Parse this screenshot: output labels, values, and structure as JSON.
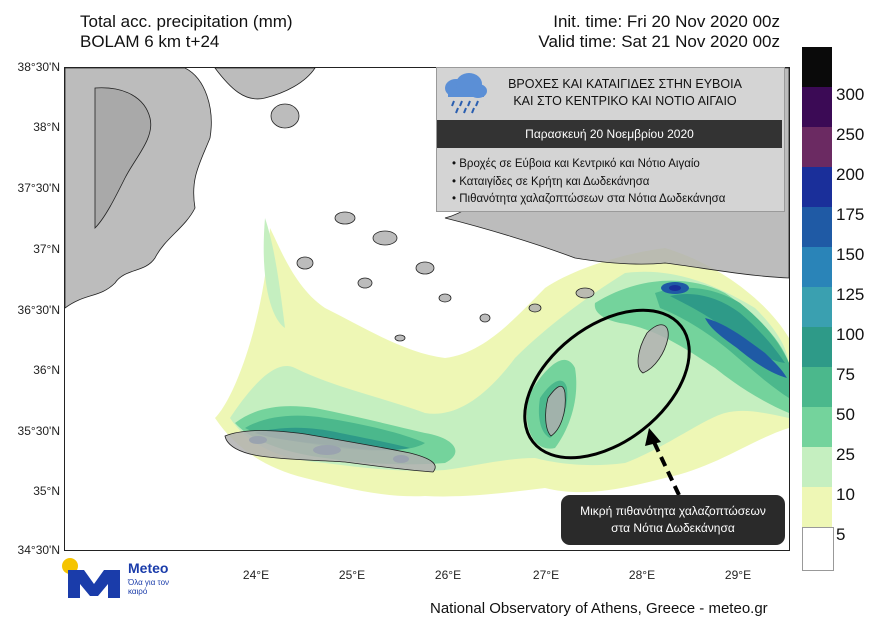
{
  "header": {
    "title_line1": "Total acc. precipitation (mm)",
    "title_line2": "BOLAM 6 km t+24",
    "init_time": "Init. time: Fri 20 Nov 2020 00z",
    "valid_time": "Valid time: Sat 21 Nov 2020 00z"
  },
  "axes": {
    "lat_labels": [
      "38°30'N",
      "38°N",
      "37°30'N",
      "37°N",
      "36°30'N",
      "36°N",
      "35°30'N",
      "35°N",
      "34°30'N"
    ],
    "lon_labels": [
      "24°E",
      "25°E",
      "26°E",
      "27°E",
      "28°E",
      "29°E"
    ]
  },
  "colorbar": {
    "labels": [
      "300",
      "250",
      "200",
      "175",
      "150",
      "125",
      "100",
      "75",
      "50",
      "25",
      "10",
      "5"
    ],
    "colors": [
      "#0a0a0a",
      "#3b0a55",
      "#6b2a62",
      "#1a2f9a",
      "#1f5aa5",
      "#2a84b8",
      "#3aa0b0",
      "#2e9a88",
      "#4bb88c",
      "#74d39c",
      "#c5efc0",
      "#eef7b5",
      "#ffffff"
    ]
  },
  "info_box": {
    "title": "ΒΡΟΧΕΣ ΚΑΙ ΚΑΤΑΙΓΙΔΕΣ ΣΤΗΝ ΕΥΒΟΙΑ ΚΑΙ ΣΤΟ ΚΕΝΤΡΙΚΟ ΚΑΙ ΝΟΤΙΟ ΑΙΓΑΙΟ",
    "title_line1": "ΒΡΟΧΕΣ ΚΑΙ ΚΑΤΑΙΓΙΔΕΣ ΣΤΗΝ ΕΥΒΟΙΑ",
    "title_line2": "ΚΑΙ ΣΤΟ ΚΕΝΤΡΙΚΟ ΚΑΙ ΝΟΤΙΟ ΑΙΓΑΙΟ",
    "date": "Παρασκευή 20 Νοεμβρίου 2020",
    "bullets": [
      "Βροχές σε Εύβοια και Κεντρικό και Νότιο Αιγαίο",
      "Καταιγίδες σε Κρήτη και Δωδεκάνησα",
      "Πιθανότητα χαλαζοπτώσεων στα Νότια Δωδεκάνησα"
    ],
    "icon": "rain-cloud-icon"
  },
  "callout": {
    "line1": "Μικρή πιθανότητα χαλαζοπτώσεων",
    "line2": "στα Νότια Δωδεκάνησα"
  },
  "logo": {
    "word": "Meteo",
    "tagline": "Όλα για τον καιρό"
  },
  "footer": "National Observatory of Athens, Greece - meteo.gr",
  "colors": {
    "land": "#b0b0b0",
    "sea": "#ffffff",
    "ellipse": "#000000",
    "info_box_bg": "#d4d4d4",
    "callout_bg": "#2a2a2a"
  }
}
